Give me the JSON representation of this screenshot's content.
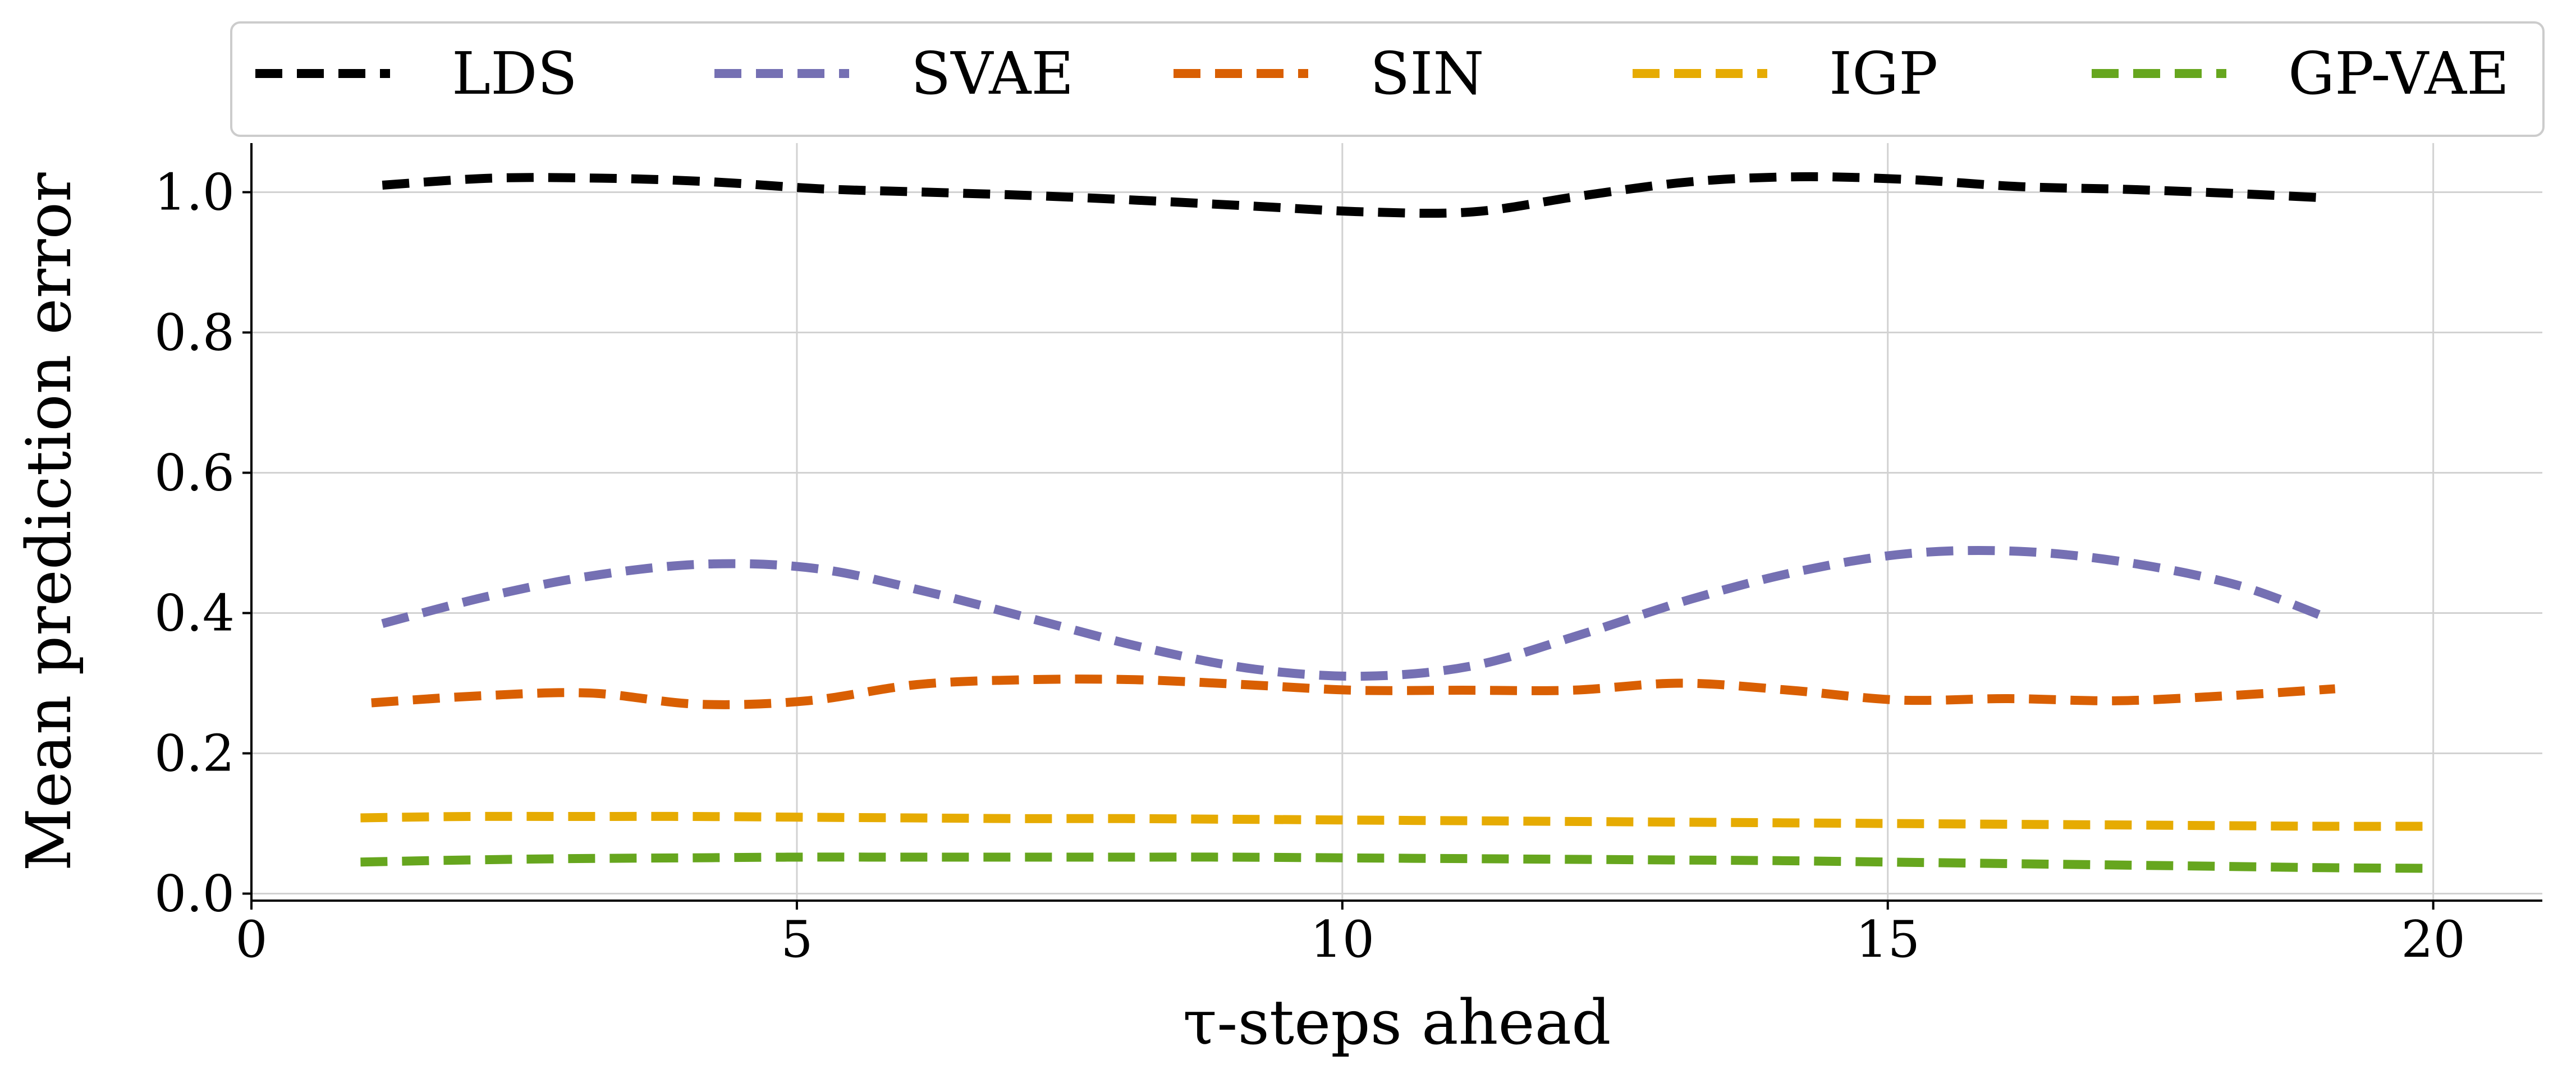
{
  "chart_data": {
    "type": "line",
    "title": "",
    "xlabel": "τ-steps ahead",
    "ylabel": "Mean prediction error",
    "xlim": [
      0,
      21
    ],
    "ylim": [
      -0.01,
      1.07
    ],
    "xticks": [
      0,
      5,
      10,
      15,
      20
    ],
    "xtick_labels": [
      "0",
      "5",
      "10",
      "15",
      "20"
    ],
    "yticks": [
      0.0,
      0.2,
      0.4,
      0.6,
      0.8,
      1.0
    ],
    "ytick_labels": [
      "0.0",
      "0.2",
      "0.4",
      "0.6",
      "0.8",
      "1.0"
    ],
    "grid": true,
    "legend_position": "top",
    "series": [
      {
        "name": "LDS",
        "color": "#000000",
        "x": [
          1.2,
          2.2,
          3.2,
          4.2,
          5.2,
          6.2,
          7.2,
          8.2,
          9.2,
          10.2,
          11.2,
          12.2,
          13.2,
          14.2,
          15.2,
          16.2,
          17.2,
          18.2,
          19.0
        ],
        "y": [
          1.01,
          1.02,
          1.02,
          1.015,
          1.005,
          1.0,
          0.995,
          0.988,
          0.98,
          0.972,
          0.972,
          0.995,
          1.015,
          1.022,
          1.018,
          1.008,
          1.004,
          0.998,
          0.992
        ]
      },
      {
        "name": "SVAE",
        "color": "#7570b3",
        "x": [
          1.2,
          2.2,
          3.2,
          4.2,
          5.2,
          6.2,
          7.2,
          8.2,
          9.2,
          10.2,
          11.2,
          12.2,
          13.2,
          14.2,
          15.2,
          16.2,
          17.2,
          18.2,
          19.0
        ],
        "y": [
          0.385,
          0.425,
          0.455,
          0.47,
          0.463,
          0.43,
          0.39,
          0.35,
          0.32,
          0.31,
          0.325,
          0.37,
          0.42,
          0.46,
          0.485,
          0.488,
          0.472,
          0.44,
          0.395
        ]
      },
      {
        "name": "SIN",
        "color": "#d95f02",
        "x": [
          1.1,
          2.1,
          3.1,
          4.1,
          5.1,
          6.1,
          7.1,
          8.1,
          9.1,
          10.1,
          11.1,
          12.1,
          13.1,
          14.1,
          15.1,
          16.1,
          17.1,
          18.1,
          19.1
        ],
        "y": [
          0.272,
          0.282,
          0.286,
          0.27,
          0.275,
          0.298,
          0.305,
          0.305,
          0.298,
          0.29,
          0.29,
          0.29,
          0.3,
          0.29,
          0.276,
          0.278,
          0.275,
          0.282,
          0.292
        ]
      },
      {
        "name": "IGP",
        "color": "#e6ab02",
        "x": [
          1,
          2,
          3,
          4,
          5,
          6,
          7,
          8,
          9,
          10,
          11,
          12,
          13,
          14,
          15,
          16,
          17,
          18,
          19,
          20
        ],
        "y": [
          0.108,
          0.11,
          0.11,
          0.11,
          0.109,
          0.108,
          0.107,
          0.107,
          0.106,
          0.105,
          0.104,
          0.103,
          0.102,
          0.101,
          0.1,
          0.099,
          0.098,
          0.097,
          0.096,
          0.096
        ]
      },
      {
        "name": "GP-VAE",
        "color": "#66a61e",
        "x": [
          1,
          2,
          3,
          4,
          5,
          6,
          7,
          8,
          9,
          10,
          11,
          12,
          13,
          14,
          15,
          16,
          17,
          18,
          19,
          20
        ],
        "y": [
          0.045,
          0.048,
          0.05,
          0.051,
          0.052,
          0.052,
          0.052,
          0.052,
          0.052,
          0.051,
          0.05,
          0.049,
          0.048,
          0.047,
          0.045,
          0.043,
          0.041,
          0.039,
          0.037,
          0.036
        ]
      }
    ]
  }
}
